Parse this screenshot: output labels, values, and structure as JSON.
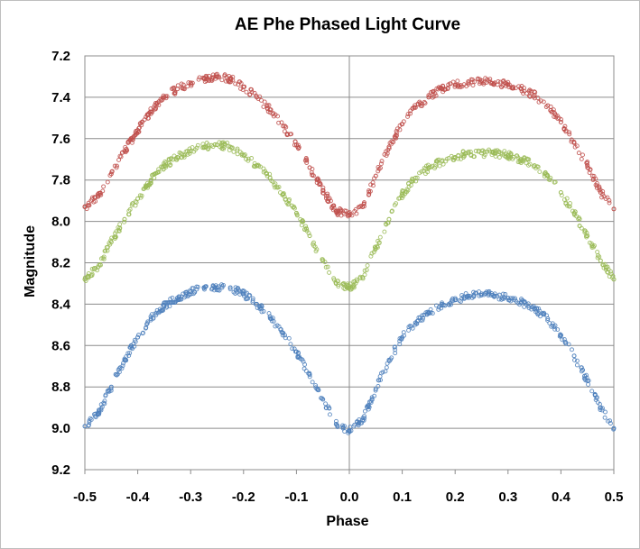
{
  "chart_data": {
    "type": "scatter",
    "title": "AE Phe Phased Light Curve",
    "xlabel": "Phase",
    "ylabel": "Magnitude",
    "xlim": [
      -0.5,
      0.5
    ],
    "ylim": [
      7.2,
      9.2
    ],
    "y_inverted": true,
    "grid": "horizontal",
    "x_ticks": [
      "-0.5",
      "-0.4",
      "-0.3",
      "-0.2",
      "-0.1",
      "0.0",
      "0.1",
      "0.2",
      "0.3",
      "0.4",
      "0.5"
    ],
    "y_ticks": [
      "7.2",
      "7.4",
      "7.6",
      "7.8",
      "8.0",
      "8.2",
      "8.4",
      "8.6",
      "8.8",
      "9.0",
      "9.2"
    ],
    "marker": "open-circle",
    "series": [
      {
        "color": "#c0504d",
        "x": [
          -0.5,
          -0.475,
          -0.45,
          -0.425,
          -0.4,
          -0.375,
          -0.35,
          -0.325,
          -0.3,
          -0.275,
          -0.25,
          -0.225,
          -0.2,
          -0.175,
          -0.15,
          -0.125,
          -0.1,
          -0.075,
          -0.05,
          -0.025,
          0.0,
          0.025,
          0.05,
          0.075,
          0.1,
          0.125,
          0.15,
          0.175,
          0.2,
          0.225,
          0.25,
          0.275,
          0.3,
          0.325,
          0.35,
          0.375,
          0.4,
          0.425,
          0.45,
          0.475,
          0.5
        ],
        "y": [
          7.93,
          7.88,
          7.77,
          7.66,
          7.56,
          7.47,
          7.4,
          7.36,
          7.33,
          7.31,
          7.3,
          7.31,
          7.35,
          7.4,
          7.46,
          7.54,
          7.63,
          7.74,
          7.85,
          7.95,
          7.97,
          7.93,
          7.78,
          7.64,
          7.53,
          7.45,
          7.4,
          7.36,
          7.34,
          7.33,
          7.32,
          7.33,
          7.34,
          7.36,
          7.39,
          7.44,
          7.52,
          7.62,
          7.73,
          7.86,
          7.94
        ]
      },
      {
        "color": "#9bbb59",
        "x": [
          -0.5,
          -0.475,
          -0.45,
          -0.425,
          -0.4,
          -0.375,
          -0.35,
          -0.325,
          -0.3,
          -0.275,
          -0.25,
          -0.225,
          -0.2,
          -0.175,
          -0.15,
          -0.125,
          -0.1,
          -0.075,
          -0.05,
          -0.025,
          0.0,
          0.025,
          0.05,
          0.075,
          0.1,
          0.125,
          0.15,
          0.175,
          0.2,
          0.225,
          0.25,
          0.275,
          0.3,
          0.325,
          0.35,
          0.375,
          0.4,
          0.425,
          0.45,
          0.475,
          0.5
        ],
        "y": [
          8.28,
          8.22,
          8.1,
          7.99,
          7.89,
          7.8,
          7.73,
          7.69,
          7.66,
          7.64,
          7.63,
          7.64,
          7.68,
          7.73,
          7.79,
          7.87,
          7.96,
          8.07,
          8.19,
          8.3,
          8.32,
          8.27,
          8.13,
          7.99,
          7.87,
          7.79,
          7.74,
          7.71,
          7.69,
          7.67,
          7.67,
          7.67,
          7.68,
          7.7,
          7.73,
          7.78,
          7.86,
          7.96,
          8.07,
          8.19,
          8.28
        ]
      },
      {
        "color": "#4f81bd",
        "x": [
          -0.5,
          -0.475,
          -0.45,
          -0.425,
          -0.4,
          -0.375,
          -0.35,
          -0.325,
          -0.3,
          -0.275,
          -0.25,
          -0.225,
          -0.2,
          -0.175,
          -0.15,
          -0.125,
          -0.1,
          -0.075,
          -0.05,
          -0.025,
          0.0,
          0.025,
          0.05,
          0.075,
          0.1,
          0.125,
          0.15,
          0.175,
          0.2,
          0.225,
          0.25,
          0.275,
          0.3,
          0.325,
          0.35,
          0.375,
          0.4,
          0.425,
          0.45,
          0.475,
          0.5
        ],
        "y": [
          8.99,
          8.93,
          8.8,
          8.67,
          8.56,
          8.47,
          8.41,
          8.37,
          8.34,
          8.32,
          8.32,
          8.32,
          8.35,
          8.4,
          8.46,
          8.54,
          8.63,
          8.74,
          8.86,
          8.98,
          9.01,
          8.96,
          8.81,
          8.67,
          8.56,
          8.49,
          8.44,
          8.4,
          8.38,
          8.36,
          8.35,
          8.36,
          8.37,
          8.39,
          8.42,
          8.47,
          8.55,
          8.65,
          8.77,
          8.9,
          9.0
        ]
      }
    ]
  }
}
